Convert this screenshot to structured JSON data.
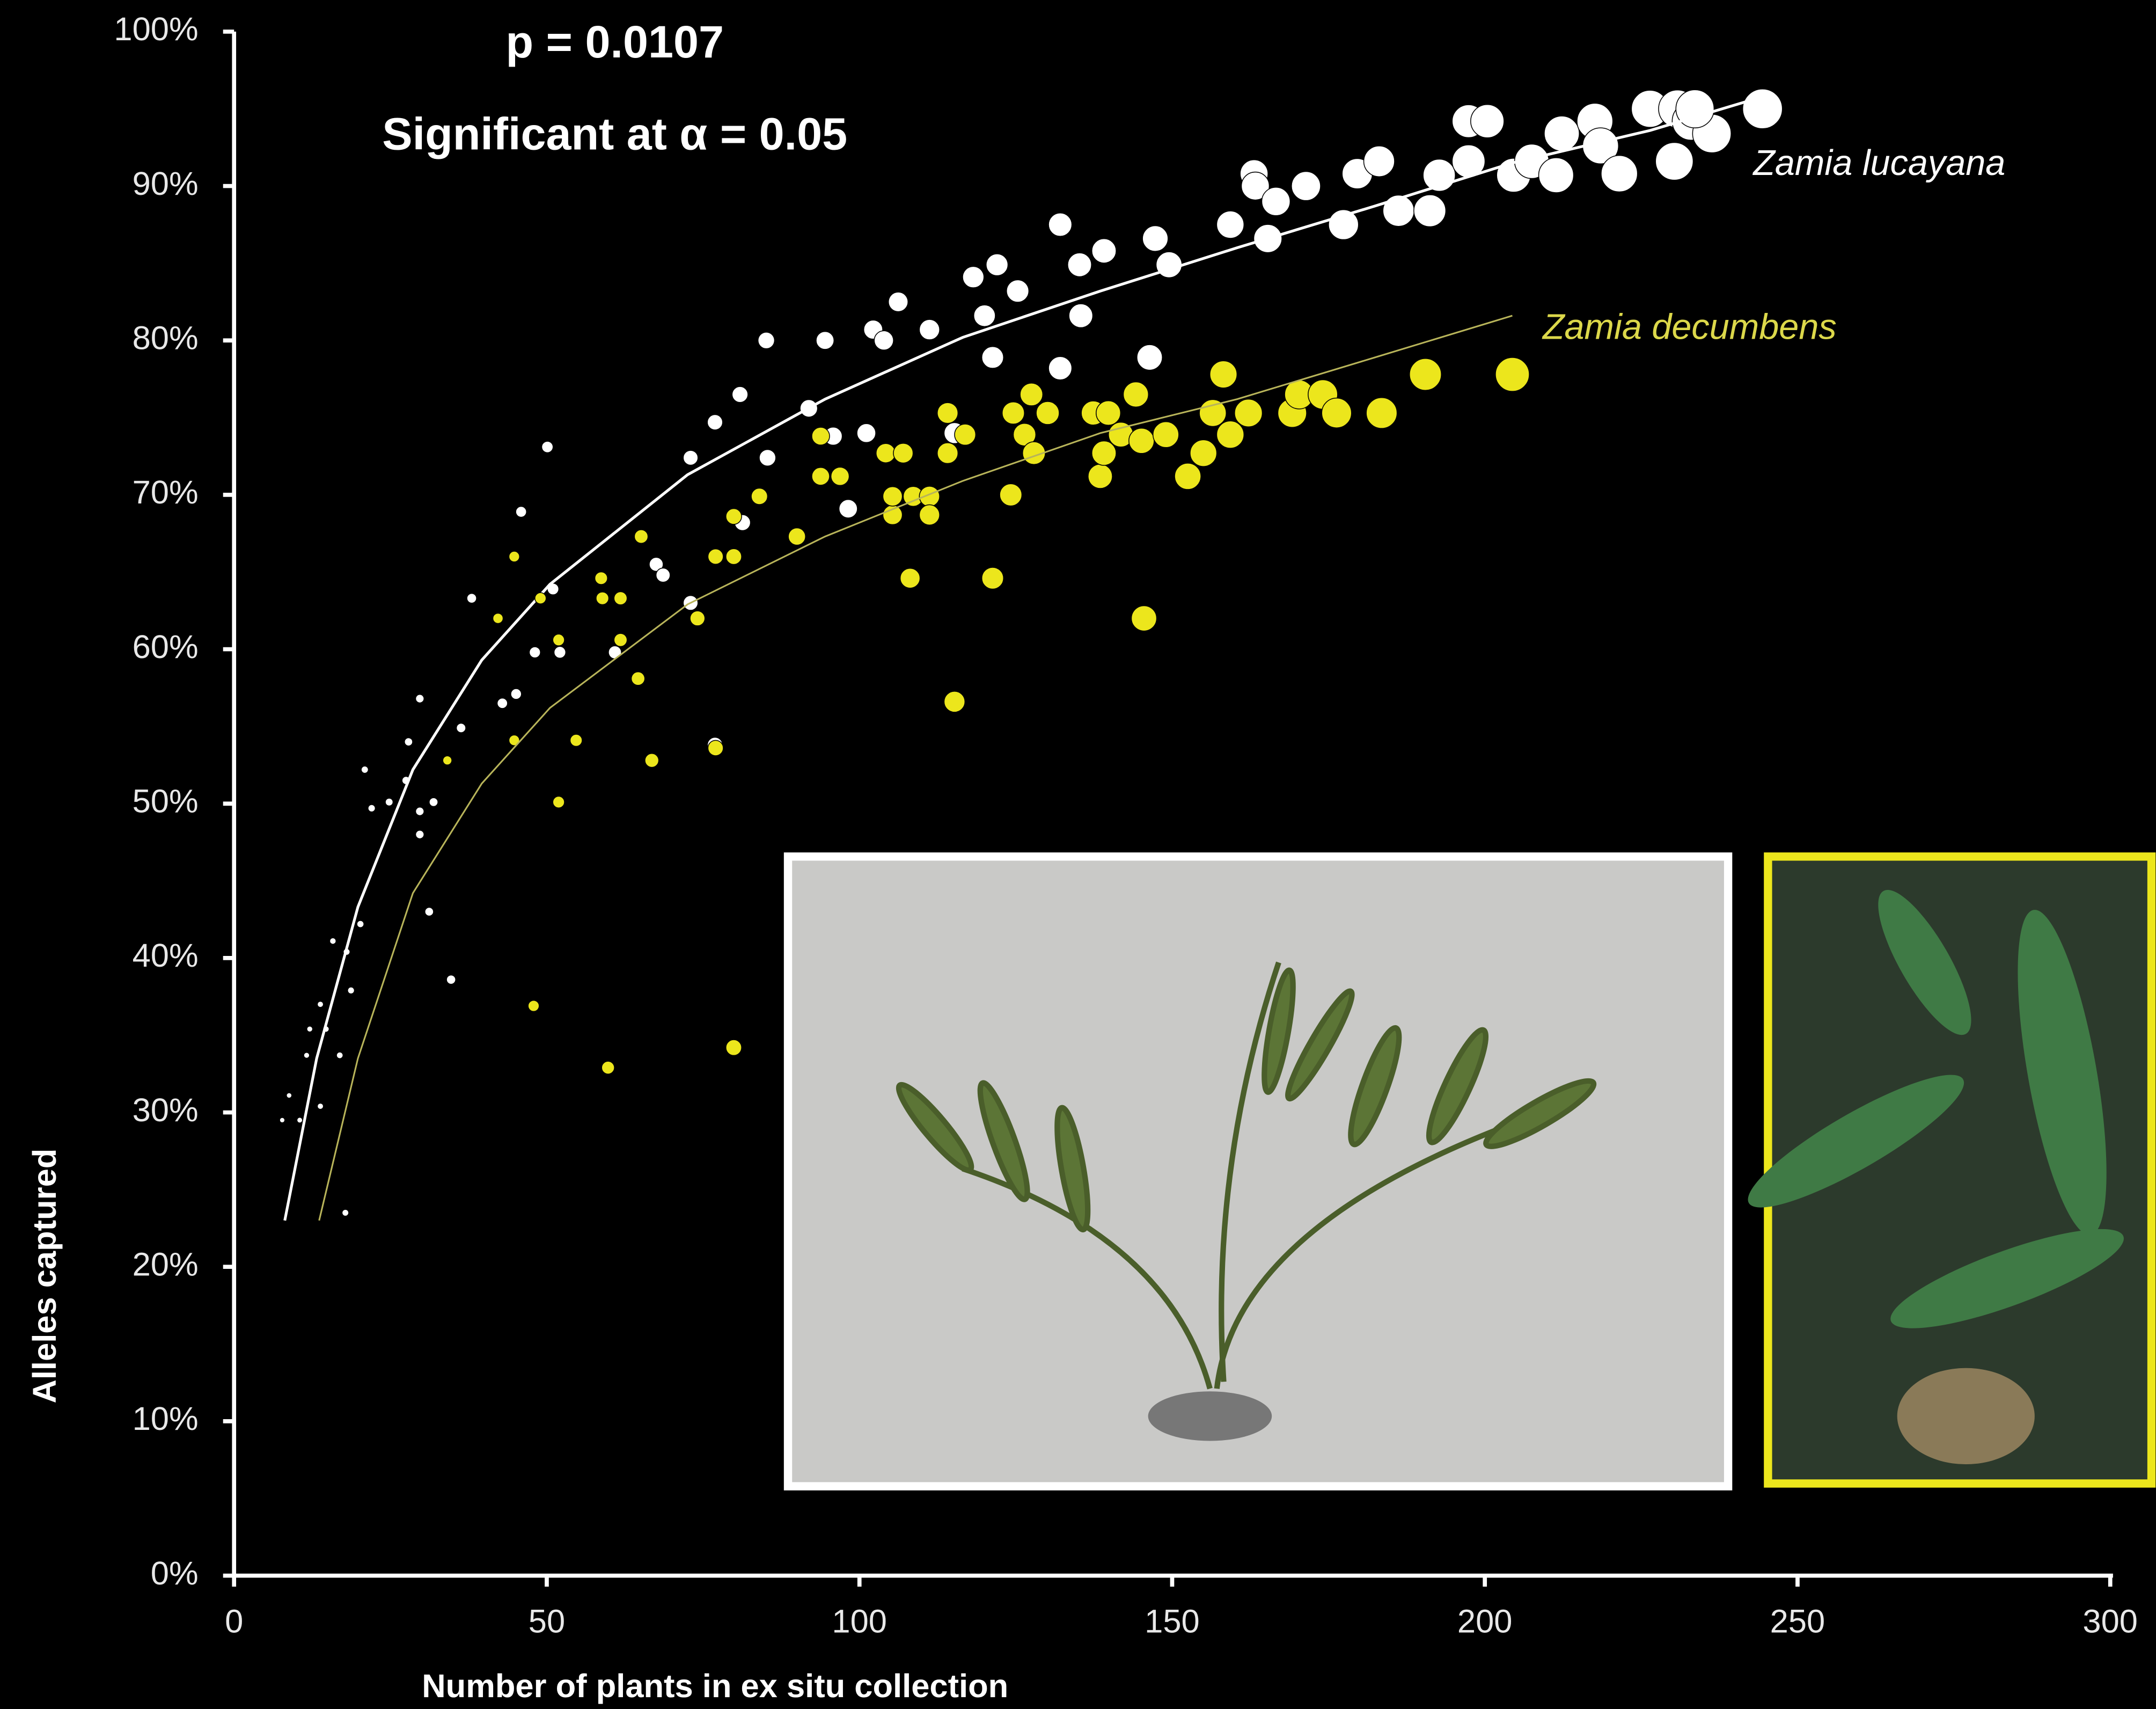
{
  "chart_data": {
    "type": "scatter",
    "annotations": [
      "p = 0.0107",
      "Significant at α = 0.05"
    ],
    "xlabel": "Number of plants in ex situ collection",
    "ylabel": "Alleles captured",
    "xlim": [
      0,
      300
    ],
    "xticks": [
      0,
      50,
      100,
      150,
      200,
      250,
      300
    ],
    "ylim": [
      0,
      100
    ],
    "yticks": [
      {
        "value": 0,
        "label": "0%"
      },
      {
        "value": 10,
        "label": "10%"
      },
      {
        "value": 20,
        "label": "20%"
      },
      {
        "value": 30,
        "label": "30%"
      },
      {
        "value": 40,
        "label": "40%"
      },
      {
        "value": 50,
        "label": "50%"
      },
      {
        "value": 60,
        "label": "60%"
      },
      {
        "value": 70,
        "label": "70%"
      },
      {
        "value": 80,
        "label": "80%"
      },
      {
        "value": 90,
        "label": "90%"
      },
      {
        "value": 100,
        "label": "100%"
      }
    ],
    "series": [
      {
        "name": "Zamia lucayana",
        "color": "#ffffff",
        "x": [
          7.7,
          8.8,
          10.5,
          11.6,
          12.1,
          13.8,
          14.7,
          13.8,
          15.8,
          16.9,
          18.0,
          18.7,
          17.8,
          20.2,
          20.9,
          22.0,
          24.8,
          27.5,
          27.9,
          29.7,
          29.7,
          29.7,
          31.2,
          31.9,
          36.3,
          34.7,
          38.0,
          42.9,
          45.1,
          45.9,
          48.1,
          50.1,
          51.0,
          52.1,
          60.9,
          67.5,
          68.6,
          73.0,
          73.0,
          76.9,
          76.9,
          80.9,
          81.3,
          85.1,
          85.3,
          91.9,
          94.5,
          95.8,
          98.2,
          101.1,
          102.2,
          103.9,
          106.2,
          111.2,
          115.2,
          118.2,
          120.0,
          121.3,
          122.0,
          125.3,
          132.1,
          132.1,
          135.2,
          135.4,
          139.1,
          146.4,
          147.3,
          149.5,
          159.3,
          163.1,
          163.3,
          165.3,
          166.6,
          171.4,
          177.4,
          179.6,
          183.1,
          186.2,
          191.2,
          192.7,
          197.4,
          197.4,
          200.4,
          204.6,
          207.5,
          211.4,
          212.3,
          217.6,
          218.5,
          221.5,
          226.4,
          230.3,
          230.8,
          233.0,
          236.3,
          233.6,
          244.4
        ],
        "values": [
          29.5,
          31.1,
          29.5,
          33.7,
          35.4,
          37.0,
          35.4,
          30.4,
          41.1,
          33.7,
          40.4,
          37.9,
          23.5,
          42.2,
          52.2,
          49.7,
          50.1,
          51.5,
          54.0,
          56.8,
          49.5,
          48.0,
          43.0,
          50.1,
          54.9,
          38.6,
          63.3,
          56.5,
          57.1,
          68.9,
          59.8,
          73.1,
          63.9,
          59.8,
          59.8,
          65.5,
          64.8,
          63.0,
          72.4,
          74.7,
          53.8,
          76.5,
          68.2,
          80.0,
          72.4,
          75.6,
          80.0,
          73.8,
          69.1,
          74.0,
          80.7,
          80.0,
          82.5,
          80.7,
          74.0,
          84.1,
          81.6,
          78.9,
          84.9,
          83.2,
          87.5,
          78.2,
          84.9,
          81.6,
          85.8,
          78.9,
          86.6,
          84.9,
          87.5,
          90.8,
          90.0,
          86.6,
          89.0,
          90.0,
          87.5,
          90.8,
          91.6,
          88.4,
          88.4,
          90.7,
          94.2,
          91.6,
          94.2,
          90.7,
          91.6,
          90.7,
          93.4,
          94.2,
          92.6,
          90.8,
          95.0,
          91.6,
          95.0,
          94.2,
          93.4,
          95.0,
          95.0
        ],
        "trend_x": [
          8.1,
          13.2,
          19.8,
          28.6,
          39.6,
          50.5,
          72.5,
          94.5,
          116.5,
          138.5,
          160.4,
          182.4,
          204.4,
          226.4,
          242.9
        ],
        "trend_values": [
          23.0,
          33.5,
          43.3,
          52.2,
          59.3,
          64.2,
          71.3,
          76.2,
          80.2,
          83.2,
          86.0,
          88.7,
          91.5,
          93.6,
          95.6
        ]
      },
      {
        "name": "Zamia decumbens",
        "color": "#ece61c",
        "x": [
          34.1,
          42.2,
          44.8,
          44.8,
          47.9,
          49.0,
          51.9,
          51.9,
          54.7,
          58.7,
          58.9,
          59.8,
          61.8,
          61.8,
          64.6,
          65.1,
          66.8,
          74.1,
          77.0,
          77.0,
          79.9,
          79.9,
          79.9,
          84.0,
          90.0,
          93.8,
          93.8,
          96.9,
          104.2,
          105.3,
          105.3,
          107.0,
          108.1,
          108.6,
          111.2,
          111.2,
          114.1,
          114.1,
          115.2,
          116.9,
          121.3,
          124.2,
          124.6,
          126.4,
          127.5,
          127.9,
          130.1,
          137.4,
          138.5,
          139.1,
          139.8,
          141.8,
          144.2,
          145.1,
          145.5,
          149.0,
          152.5,
          155.0,
          156.5,
          158.2,
          159.3,
          162.2,
          169.2,
          170.3,
          174.1,
          176.3,
          183.5,
          190.5,
          204.4
        ],
        "values": [
          52.8,
          62.0,
          66.0,
          54.1,
          36.9,
          63.3,
          60.6,
          50.1,
          54.1,
          64.6,
          63.3,
          32.9,
          63.3,
          60.6,
          58.1,
          67.3,
          52.8,
          62.0,
          53.6,
          66.0,
          66.0,
          68.6,
          34.2,
          69.9,
          67.3,
          73.8,
          71.2,
          71.2,
          72.7,
          68.7,
          69.9,
          72.7,
          64.6,
          69.9,
          69.9,
          68.7,
          75.3,
          72.7,
          56.6,
          73.9,
          64.6,
          70.0,
          75.3,
          73.9,
          76.5,
          72.7,
          75.3,
          75.3,
          71.2,
          72.7,
          75.3,
          73.9,
          76.5,
          73.5,
          62.0,
          73.9,
          71.2,
          72.7,
          75.3,
          77.8,
          73.9,
          75.3,
          75.3,
          76.5,
          76.5,
          75.3,
          75.3,
          77.8,
          77.8
        ],
        "trend_x": [
          13.6,
          19.8,
          28.6,
          39.6,
          50.5,
          72.5,
          94.5,
          116.5,
          138.5,
          160.4,
          182.4,
          204.4
        ],
        "trend_values": [
          23.0,
          33.5,
          44.2,
          51.3,
          56.2,
          62.9,
          67.3,
          70.9,
          74.0,
          76.2,
          78.9,
          81.6
        ]
      }
    ]
  }
}
